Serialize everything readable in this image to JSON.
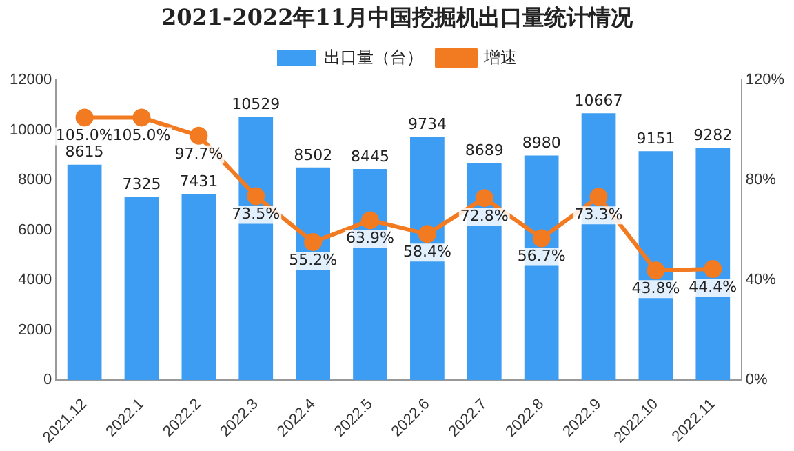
{
  "chart_data": {
    "type": "bar",
    "title": "2021-2022年11月中国挖掘机出口量统计情况",
    "categories": [
      "2021.12",
      "2022.1",
      "2022.2",
      "2022.3",
      "2022.4",
      "2022.5",
      "2022.6",
      "2022.7",
      "2022.8",
      "2022.9",
      "2022.10",
      "2022.11"
    ],
    "series": [
      {
        "name": "出口量（台）",
        "color": "#3d9df2",
        "values": [
          8615,
          7325,
          7431,
          10529,
          8502,
          8445,
          9734,
          8689,
          8980,
          10667,
          9151,
          9282
        ],
        "value_labels": [
          "8615",
          "7325",
          "7431",
          "10529",
          "8502",
          "8445",
          "9734",
          "8689",
          "8980",
          "10667",
          "9151",
          "9282"
        ]
      },
      {
        "name": "增速",
        "type": "line",
        "axis": "y2",
        "color": "#f27b22",
        "marker": "circle",
        "values": [
          105.0,
          105.0,
          97.7,
          73.5,
          55.2,
          63.9,
          58.4,
          72.8,
          56.7,
          73.3,
          43.8,
          44.4
        ],
        "value_labels": [
          "105.0%",
          "105.0%",
          "97.7%",
          "73.5%",
          "55.2%",
          "63.9%",
          "58.4%",
          "72.8%",
          "56.7%",
          "73.3%",
          "43.8%",
          "44.4%"
        ]
      }
    ],
    "ylim": [
      0,
      12000
    ],
    "yticks": [
      0,
      2000,
      4000,
      6000,
      8000,
      10000,
      12000
    ],
    "y2lim": [
      0,
      120
    ],
    "y2ticks": [
      {
        "value": 0,
        "label": "0%"
      },
      {
        "value": 40,
        "label": "40%"
      },
      {
        "value": 80,
        "label": "80%"
      },
      {
        "value": 120,
        "label": "120%"
      }
    ],
    "grid": false,
    "legend": "top"
  }
}
